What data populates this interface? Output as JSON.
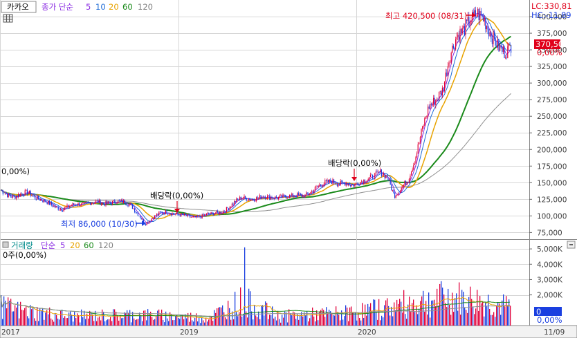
{
  "colors": {
    "candle_up": "#e0003a",
    "candle_down": "#1a3fe0",
    "ma5": "#8a2be2",
    "ma10": "#1e6bd6",
    "ma20": "#e8a300",
    "ma60": "#1a8a1a",
    "ma120": "#909090",
    "grid": "#d6d6d6",
    "price_box": "#e0001a"
  },
  "price_panel": {
    "ticker": "카카오",
    "legend_title": "종가 단순",
    "periods": [
      "5",
      "10",
      "20",
      "60",
      "120"
    ],
    "lc_readout": "LC:330,81",
    "hc_readout": "HC:-11,89",
    "last_price_label": "370,500",
    "last_change_label": "0,00%",
    "left_ratio_label": "0,00%)",
    "annotations": {
      "high": "최고 420,500 (08/31)",
      "low": "최저 86,000 (10/30)",
      "dividend1": "배당락(0,00%)",
      "dividend2": "배당락(0,00%)"
    }
  },
  "volume_panel": {
    "title": "거래량",
    "legend_title": "단순",
    "periods": [
      "5",
      "20",
      "60",
      "120"
    ],
    "readout": "0주(0,00%)",
    "last_value_label": "0",
    "last_change_label": "0,00%"
  },
  "x_axis": {
    "labels": [
      "2017",
      "2019",
      "2020",
      "11/09"
    ]
  },
  "chart_data": {
    "type": "candlestick",
    "price_axis": {
      "ticks": [
        "400,000",
        "375,000",
        "350,000",
        "325,000",
        "300,000",
        "275,000",
        "250,000",
        "225,000",
        "200,000",
        "175,000",
        "150,000",
        "125,000",
        "100,000",
        "75,000"
      ],
      "tick_values": [
        400000,
        375000,
        350000,
        325000,
        300000,
        275000,
        250000,
        225000,
        200000,
        175000,
        150000,
        125000,
        100000,
        75000
      ],
      "range": [
        65000,
        425000
      ]
    },
    "volume_axis": {
      "ticks": [
        "5,000K",
        "4,000K",
        "3,000K",
        "2,000K"
      ],
      "tick_values": [
        5000,
        4000,
        3000,
        2000
      ],
      "range": [
        0,
        5500
      ]
    },
    "price_path": [
      [
        0,
        140000
      ],
      [
        10,
        132000
      ],
      [
        20,
        128000
      ],
      [
        30,
        133000
      ],
      [
        40,
        136000
      ],
      [
        50,
        128000
      ],
      [
        60,
        124000
      ],
      [
        70,
        120000
      ],
      [
        80,
        113000
      ],
      [
        90,
        110000
      ],
      [
        100,
        115000
      ],
      [
        110,
        118000
      ],
      [
        120,
        117000
      ],
      [
        130,
        120000
      ],
      [
        140,
        122000
      ],
      [
        150,
        118000
      ],
      [
        160,
        120000
      ],
      [
        170,
        122000
      ],
      [
        180,
        121000
      ],
      [
        190,
        115000
      ],
      [
        200,
        102000
      ],
      [
        210,
        88000
      ],
      [
        220,
        97000
      ],
      [
        230,
        104000
      ],
      [
        240,
        106000
      ],
      [
        250,
        103000
      ],
      [
        260,
        102000
      ],
      [
        270,
        100000
      ],
      [
        280,
        97000
      ],
      [
        290,
        99000
      ],
      [
        300,
        103000
      ],
      [
        310,
        104000
      ],
      [
        320,
        105000
      ],
      [
        330,
        112000
      ],
      [
        340,
        122000
      ],
      [
        350,
        128000
      ],
      [
        360,
        125000
      ],
      [
        370,
        126000
      ],
      [
        380,
        130000
      ],
      [
        390,
        128000
      ],
      [
        400,
        127000
      ],
      [
        410,
        129000
      ],
      [
        420,
        130000
      ],
      [
        430,
        131000
      ],
      [
        440,
        130000
      ],
      [
        450,
        136000
      ],
      [
        460,
        145000
      ],
      [
        470,
        150000
      ],
      [
        480,
        152000
      ],
      [
        490,
        148000
      ],
      [
        500,
        150000
      ],
      [
        510,
        146000
      ],
      [
        520,
        151000
      ],
      [
        530,
        155000
      ],
      [
        540,
        160000
      ],
      [
        550,
        166000
      ],
      [
        560,
        158000
      ],
      [
        570,
        130000
      ],
      [
        580,
        142000
      ],
      [
        590,
        155000
      ],
      [
        600,
        185000
      ],
      [
        610,
        230000
      ],
      [
        620,
        265000
      ],
      [
        630,
        275000
      ],
      [
        640,
        290000
      ],
      [
        650,
        340000
      ],
      [
        660,
        370000
      ],
      [
        670,
        380000
      ],
      [
        680,
        395000
      ],
      [
        690,
        405000
      ],
      [
        700,
        395000
      ],
      [
        710,
        372000
      ],
      [
        720,
        355000
      ],
      [
        730,
        345000
      ],
      [
        740,
        358000
      ]
    ],
    "volume_levels": [
      [
        0,
        1200
      ],
      [
        40,
        900
      ],
      [
        100,
        600
      ],
      [
        200,
        700
      ],
      [
        300,
        500
      ],
      [
        350,
        1600
      ],
      [
        400,
        600
      ],
      [
        450,
        700
      ],
      [
        500,
        800
      ],
      [
        550,
        1100
      ],
      [
        600,
        1500
      ],
      [
        650,
        1800
      ],
      [
        700,
        1500
      ],
      [
        740,
        1100
      ]
    ],
    "volume_spike": {
      "x": 353,
      "value": 5100
    },
    "high_point": {
      "value": 420500,
      "date": "08/31"
    },
    "low_point": {
      "value": 86000,
      "date": "10/30"
    }
  }
}
